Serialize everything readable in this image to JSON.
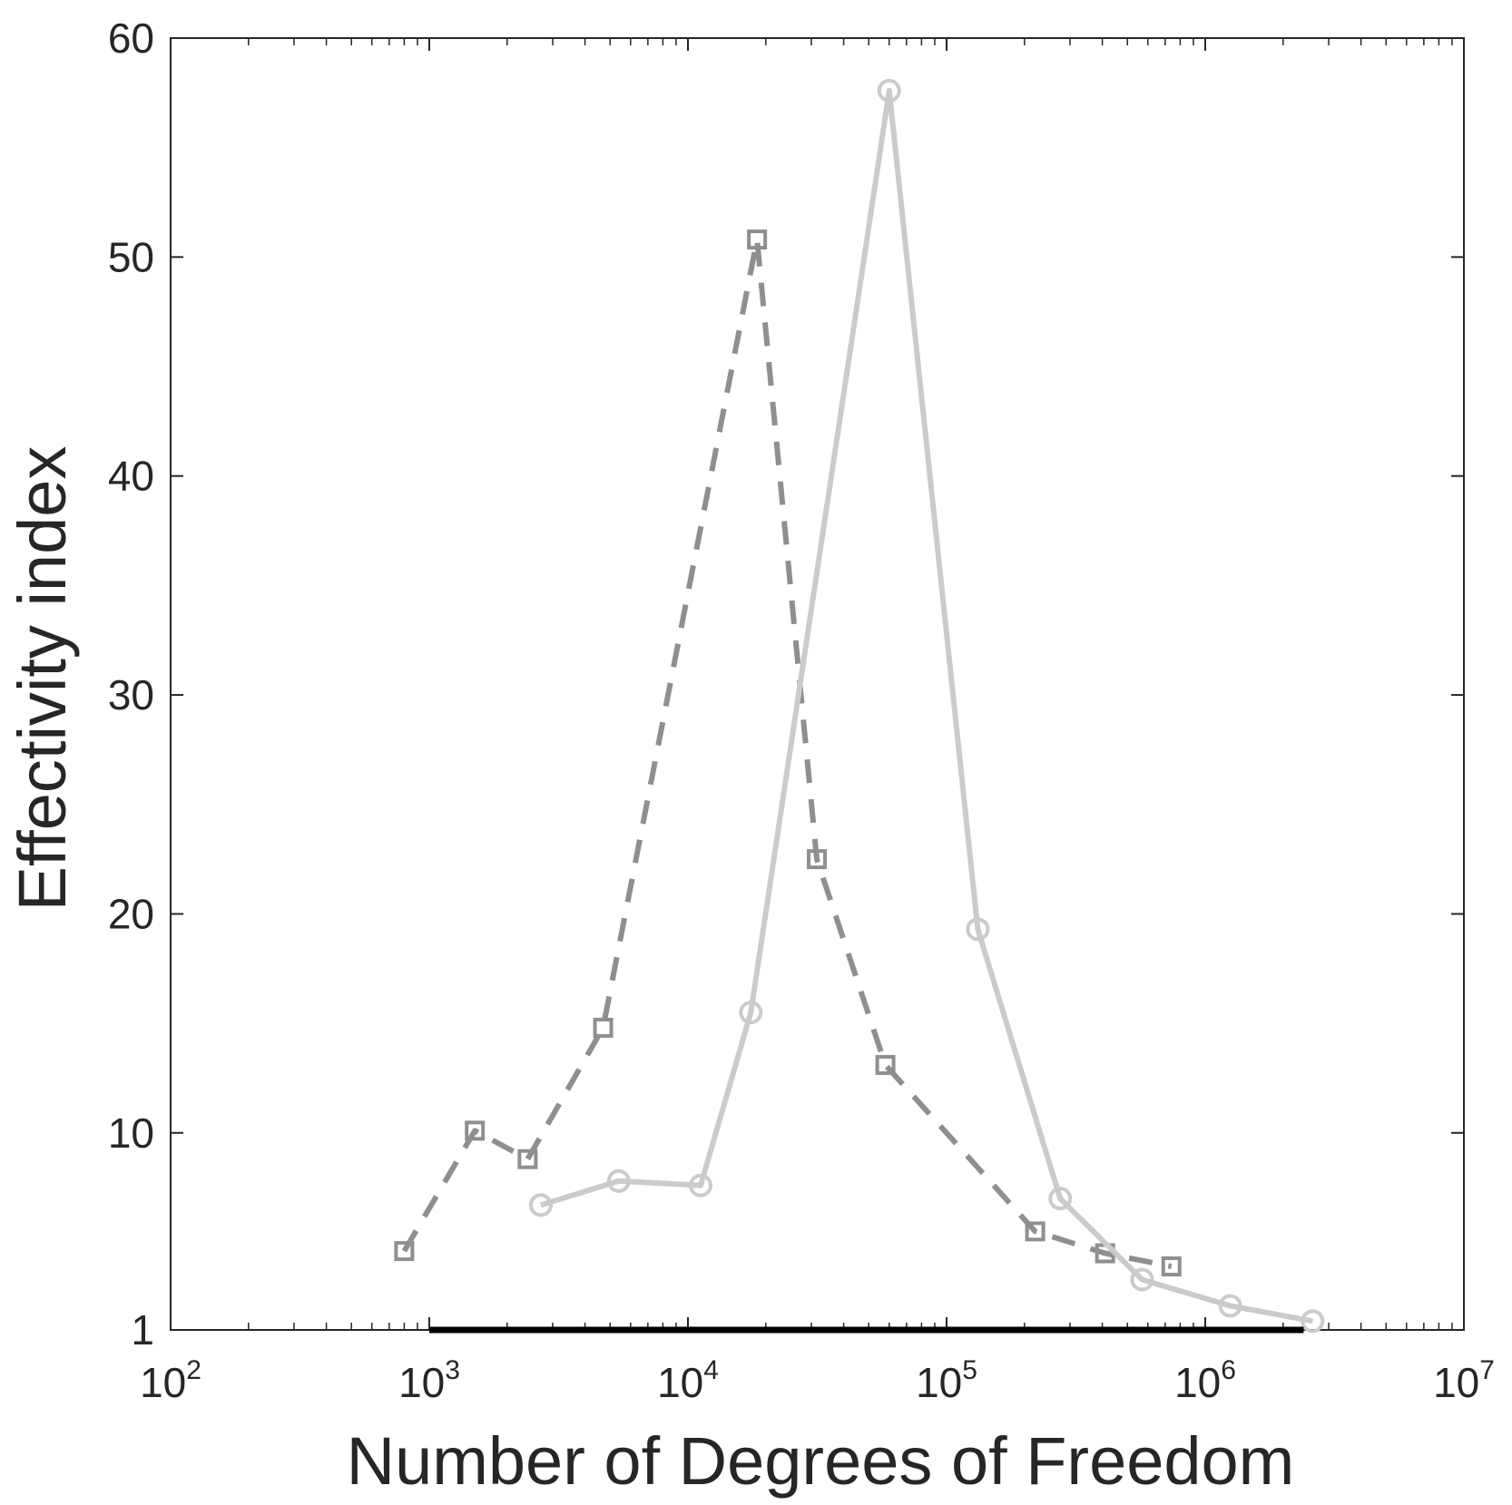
{
  "chart_data": {
    "type": "line",
    "xlabel": "Number of Degrees of Freedom",
    "ylabel": "Effectivity index",
    "xscale": "log",
    "xlim": [
      100,
      10000000
    ],
    "ylim": [
      1,
      60
    ],
    "yticks": [
      1,
      10,
      20,
      30,
      40,
      50,
      60
    ],
    "xticks": [
      {
        "base": "10",
        "exp": "2"
      },
      {
        "base": "10",
        "exp": "3"
      },
      {
        "base": "10",
        "exp": "4"
      },
      {
        "base": "10",
        "exp": "5"
      },
      {
        "base": "10",
        "exp": "6"
      },
      {
        "base": "10",
        "exp": "7"
      }
    ],
    "grid": false,
    "legend": "none",
    "series": [
      {
        "style": "dashed",
        "marker": "square",
        "color": "#8f8f8f",
        "x": [
          800,
          1500,
          2400,
          4700,
          18500,
          31500,
          58000,
          220000,
          410000,
          740000
        ],
        "y": [
          4.6,
          10.1,
          8.8,
          14.8,
          50.8,
          22.5,
          13.1,
          5.5,
          4.5,
          3.9
        ]
      },
      {
        "style": "solid",
        "marker": "circle",
        "color": "#cbcbcb",
        "x": [
          2700,
          5400,
          11200,
          17500,
          60000,
          132000,
          275000,
          570000,
          1250000,
          2600000
        ],
        "y": [
          6.7,
          7.8,
          7.6,
          15.5,
          57.6,
          19.3,
          7.0,
          3.3,
          2.1,
          1.4
        ]
      },
      {
        "style": "solid",
        "marker": "none",
        "color": "#000000",
        "x": [
          1000,
          2400000
        ],
        "y": [
          1,
          1
        ]
      }
    ]
  }
}
